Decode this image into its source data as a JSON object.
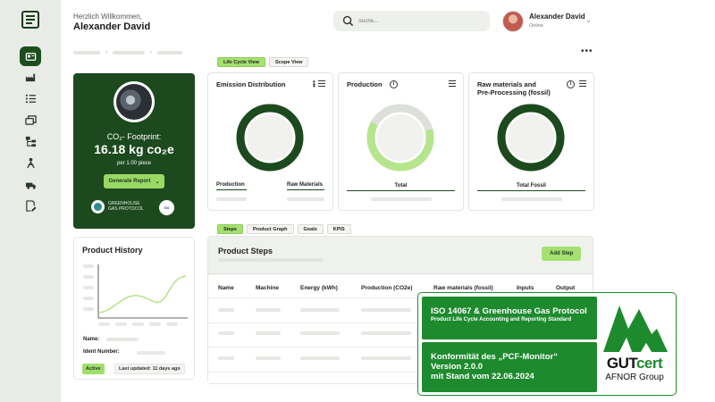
{
  "colors": {
    "primary_dark": "#1c4a1e",
    "accent_green": "#a5e070",
    "light_green": "#b5e68d",
    "grey_track": "#e0e2de",
    "certificate_green": "#1e8a2e"
  },
  "sidebar": {
    "logo_icon": "document-list-icon",
    "items": [
      {
        "icon": "id-card-icon",
        "active": true
      },
      {
        "icon": "factory-icon",
        "active": false
      },
      {
        "icon": "checklist-icon",
        "active": false
      },
      {
        "icon": "stacked-boxes-icon",
        "active": false
      },
      {
        "icon": "hierarchy-icon",
        "active": false
      },
      {
        "icon": "recycle-person-icon",
        "active": false
      },
      {
        "icon": "truck-icon",
        "active": false
      },
      {
        "icon": "edit-document-icon",
        "active": false
      }
    ]
  },
  "header": {
    "welcome": "Herzlich Willkommen,",
    "user_name": "Alexander David",
    "search_placeholder": "Suche...",
    "profile": {
      "name": "Alexander David",
      "status": "Online"
    }
  },
  "footprint": {
    "label": "CO₂- Footprint:",
    "value": "16.18 kg co₂e",
    "per": "per 1.00 piece",
    "button": "Generate Report",
    "ghg_line1": "GREENHOUSE",
    "ghg_line2": "GAS PROTOCOL",
    "iso_badge": "ISO"
  },
  "history": {
    "title": "Product History",
    "name_label": "Name:",
    "ident_label": "Ident Number:",
    "status": "Active",
    "updated": "Last updated: 11 days ago"
  },
  "view_tabs": [
    "Life Cycle View",
    "Scope View"
  ],
  "cards": {
    "emission": {
      "title": "Emission Distribution",
      "label_left": "Production",
      "label_right": "Raw Materials",
      "donut_fraction": 1.0
    },
    "production": {
      "title": "Production",
      "label": "Total",
      "donut_fraction": 0.62
    },
    "raw": {
      "title_line1": "Raw materials and",
      "title_line2": "Pre-Processing (fossil)",
      "label": "Total Fossil",
      "donut_fraction": 1.0
    }
  },
  "bottom_tabs": [
    "Steps",
    "Product Graph",
    "Goals",
    "KPIS"
  ],
  "steps": {
    "title": "Product Steps",
    "add_button": "Add Step",
    "columns": [
      "Name",
      "Machine",
      "Energy (kWh)",
      "Production (CO2e)",
      "Raw materials (fossil)",
      "Inputs",
      "Output"
    ]
  },
  "certificate": {
    "heading": "ISO 14067 & Greenhouse Gas Protocol",
    "subheading": "Product Life Cycle Accounting and Reporting Standard",
    "line1": "Konformität des „PCF-Monitor“",
    "line2": "Version 2.0.0",
    "line3": "mit Stand vom 22.06.2024",
    "brand_a": "GUT",
    "brand_b": "cert",
    "brand_sub": "AFNOR Group"
  }
}
